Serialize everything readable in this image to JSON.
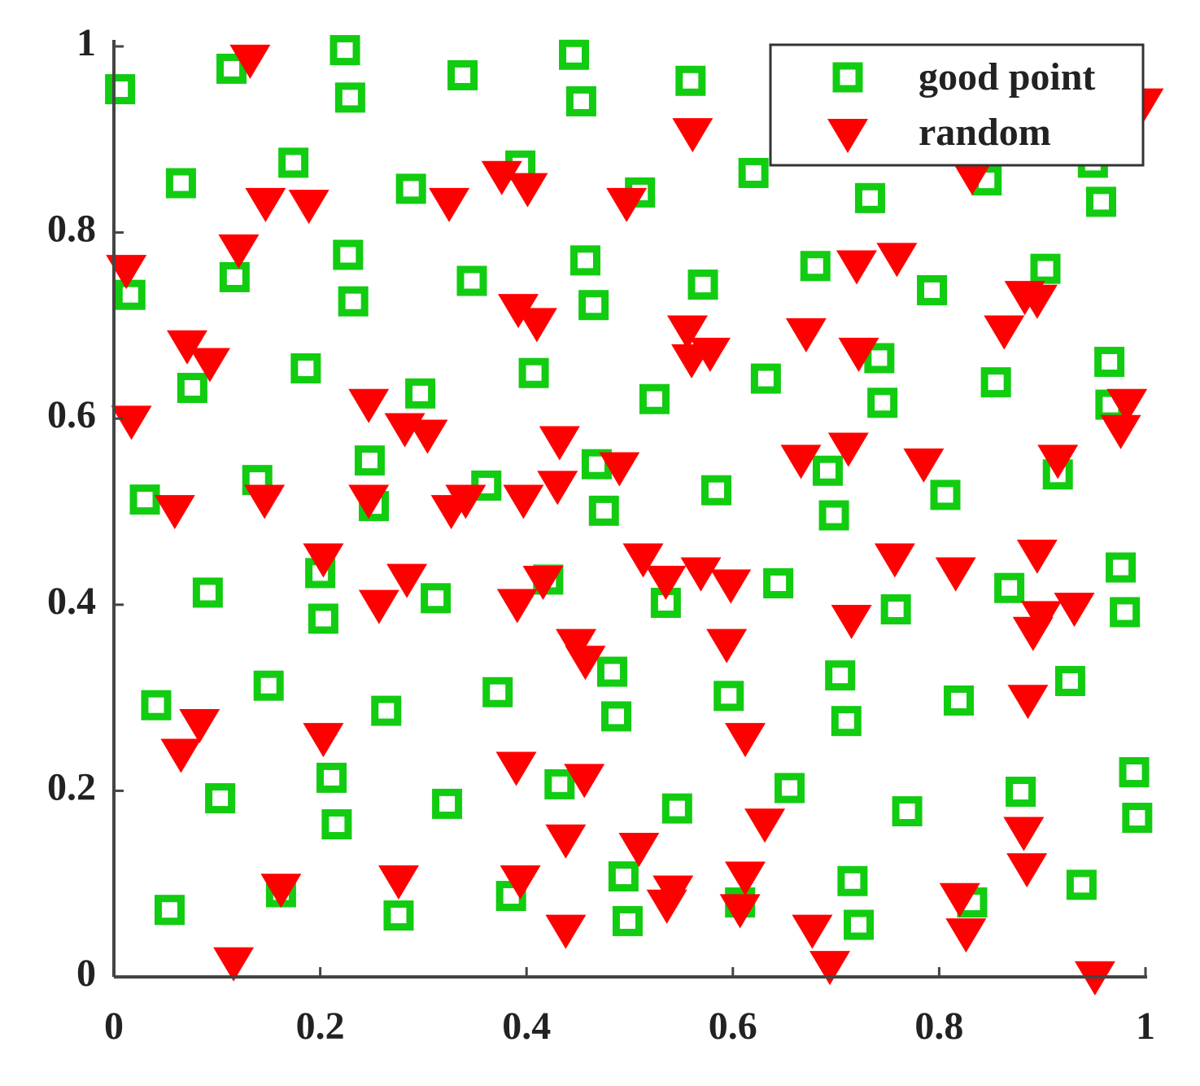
{
  "chart_data": {
    "type": "scatter",
    "xlim": [
      0,
      1
    ],
    "ylim": [
      0,
      1
    ],
    "xticks": [
      0,
      0.2,
      0.4,
      0.6,
      0.8,
      1
    ],
    "yticks": [
      0,
      0.2,
      0.4,
      0.6,
      0.8,
      1
    ],
    "grid": false,
    "legend": "upper right",
    "series": [
      {
        "name": "good point",
        "color": "#11cc11",
        "marker": "square",
        "x": [
          0.006,
          0.114,
          0.224,
          0.229,
          0.338,
          0.446,
          0.453,
          0.559,
          0.065,
          0.174,
          0.288,
          0.394,
          0.51,
          0.62,
          0.733,
          0.957,
          0.016,
          0.117,
          0.227,
          0.232,
          0.347,
          0.457,
          0.465,
          0.571,
          0.68,
          0.793,
          0.903,
          0.076,
          0.186,
          0.297,
          0.407,
          0.524,
          0.632,
          0.742,
          0.745,
          0.855,
          0.965,
          0.966,
          0.03,
          0.139,
          0.248,
          0.252,
          0.361,
          0.468,
          0.475,
          0.584,
          0.692,
          0.698,
          0.806,
          0.915,
          0.091,
          0.2,
          0.203,
          0.312,
          0.421,
          0.535,
          0.644,
          0.758,
          0.868,
          0.976,
          0.98,
          0.041,
          0.15,
          0.264,
          0.372,
          0.483,
          0.487,
          0.596,
          0.704,
          0.71,
          0.819,
          0.927,
          0.103,
          0.211,
          0.216,
          0.323,
          0.432,
          0.546,
          0.655,
          0.769,
          0.879,
          0.989,
          0.992,
          0.054,
          0.162,
          0.276,
          0.385,
          0.494,
          0.498,
          0.607,
          0.716,
          0.722,
          0.832,
          0.938,
          0.846,
          0.949
        ],
        "y": [
          0.954,
          0.976,
          0.996,
          0.945,
          0.969,
          0.991,
          0.941,
          0.963,
          0.853,
          0.875,
          0.847,
          0.872,
          0.843,
          0.864,
          0.837,
          0.833,
          0.733,
          0.752,
          0.776,
          0.726,
          0.748,
          0.77,
          0.722,
          0.744,
          0.764,
          0.738,
          0.761,
          0.633,
          0.654,
          0.627,
          0.649,
          0.621,
          0.643,
          0.665,
          0.617,
          0.639,
          0.661,
          0.615,
          0.513,
          0.534,
          0.555,
          0.506,
          0.528,
          0.551,
          0.501,
          0.523,
          0.544,
          0.496,
          0.518,
          0.54,
          0.413,
          0.434,
          0.385,
          0.407,
          0.427,
          0.402,
          0.423,
          0.395,
          0.418,
          0.44,
          0.392,
          0.292,
          0.313,
          0.286,
          0.306,
          0.328,
          0.28,
          0.302,
          0.324,
          0.275,
          0.297,
          0.318,
          0.192,
          0.214,
          0.164,
          0.186,
          0.207,
          0.181,
          0.203,
          0.178,
          0.199,
          0.22,
          0.171,
          0.072,
          0.091,
          0.066,
          0.087,
          0.108,
          0.06,
          0.08,
          0.103,
          0.056,
          0.08,
          0.099,
          0.856,
          0.875
        ]
      },
      {
        "name": "random",
        "color": "#ff0000",
        "marker": "triangle-down",
        "x": [
          0.132,
          0.561,
          0.998,
          0.147,
          0.189,
          0.325,
          0.376,
          0.401,
          0.497,
          0.832,
          0.012,
          0.121,
          0.392,
          0.41,
          0.556,
          0.56,
          0.578,
          0.671,
          0.72,
          0.722,
          0.759,
          0.863,
          0.883,
          0.895,
          0.071,
          0.093,
          0.017,
          0.247,
          0.282,
          0.304,
          0.432,
          0.49,
          0.666,
          0.712,
          0.785,
          0.915,
          0.976,
          0.982,
          0.059,
          0.146,
          0.247,
          0.327,
          0.341,
          0.397,
          0.43,
          0.203,
          0.257,
          0.284,
          0.391,
          0.416,
          0.513,
          0.535,
          0.569,
          0.598,
          0.715,
          0.757,
          0.816,
          0.895,
          0.891,
          0.899,
          0.931,
          0.448,
          0.457,
          0.594,
          0.083,
          0.065,
          0.203,
          0.612,
          0.886,
          0.39,
          0.456,
          0.631,
          0.438,
          0.509,
          0.882,
          0.885,
          0.162,
          0.276,
          0.394,
          0.542,
          0.536,
          0.612,
          0.607,
          0.82,
          0.826,
          0.438,
          0.677,
          0.694,
          0.116,
          0.951
        ],
        "y": [
          0.987,
          0.908,
          0.94,
          0.833,
          0.831,
          0.833,
          0.862,
          0.849,
          0.833,
          0.862,
          0.761,
          0.783,
          0.719,
          0.704,
          0.696,
          0.665,
          0.672,
          0.693,
          0.766,
          0.672,
          0.774,
          0.696,
          0.733,
          0.729,
          0.68,
          0.661,
          0.599,
          0.617,
          0.591,
          0.584,
          0.577,
          0.549,
          0.557,
          0.57,
          0.553,
          0.557,
          0.589,
          0.617,
          0.503,
          0.514,
          0.514,
          0.503,
          0.514,
          0.514,
          0.529,
          0.451,
          0.401,
          0.429,
          0.402,
          0.427,
          0.451,
          0.427,
          0.436,
          0.423,
          0.385,
          0.451,
          0.436,
          0.455,
          0.372,
          0.389,
          0.398,
          0.359,
          0.341,
          0.359,
          0.273,
          0.241,
          0.258,
          0.258,
          0.299,
          0.227,
          0.214,
          0.166,
          0.149,
          0.14,
          0.157,
          0.118,
          0.096,
          0.105,
          0.105,
          0.094,
          0.079,
          0.109,
          0.074,
          0.086,
          0.048,
          0.052,
          0.052,
          0.013,
          0.017,
          0.002
        ]
      }
    ]
  }
}
